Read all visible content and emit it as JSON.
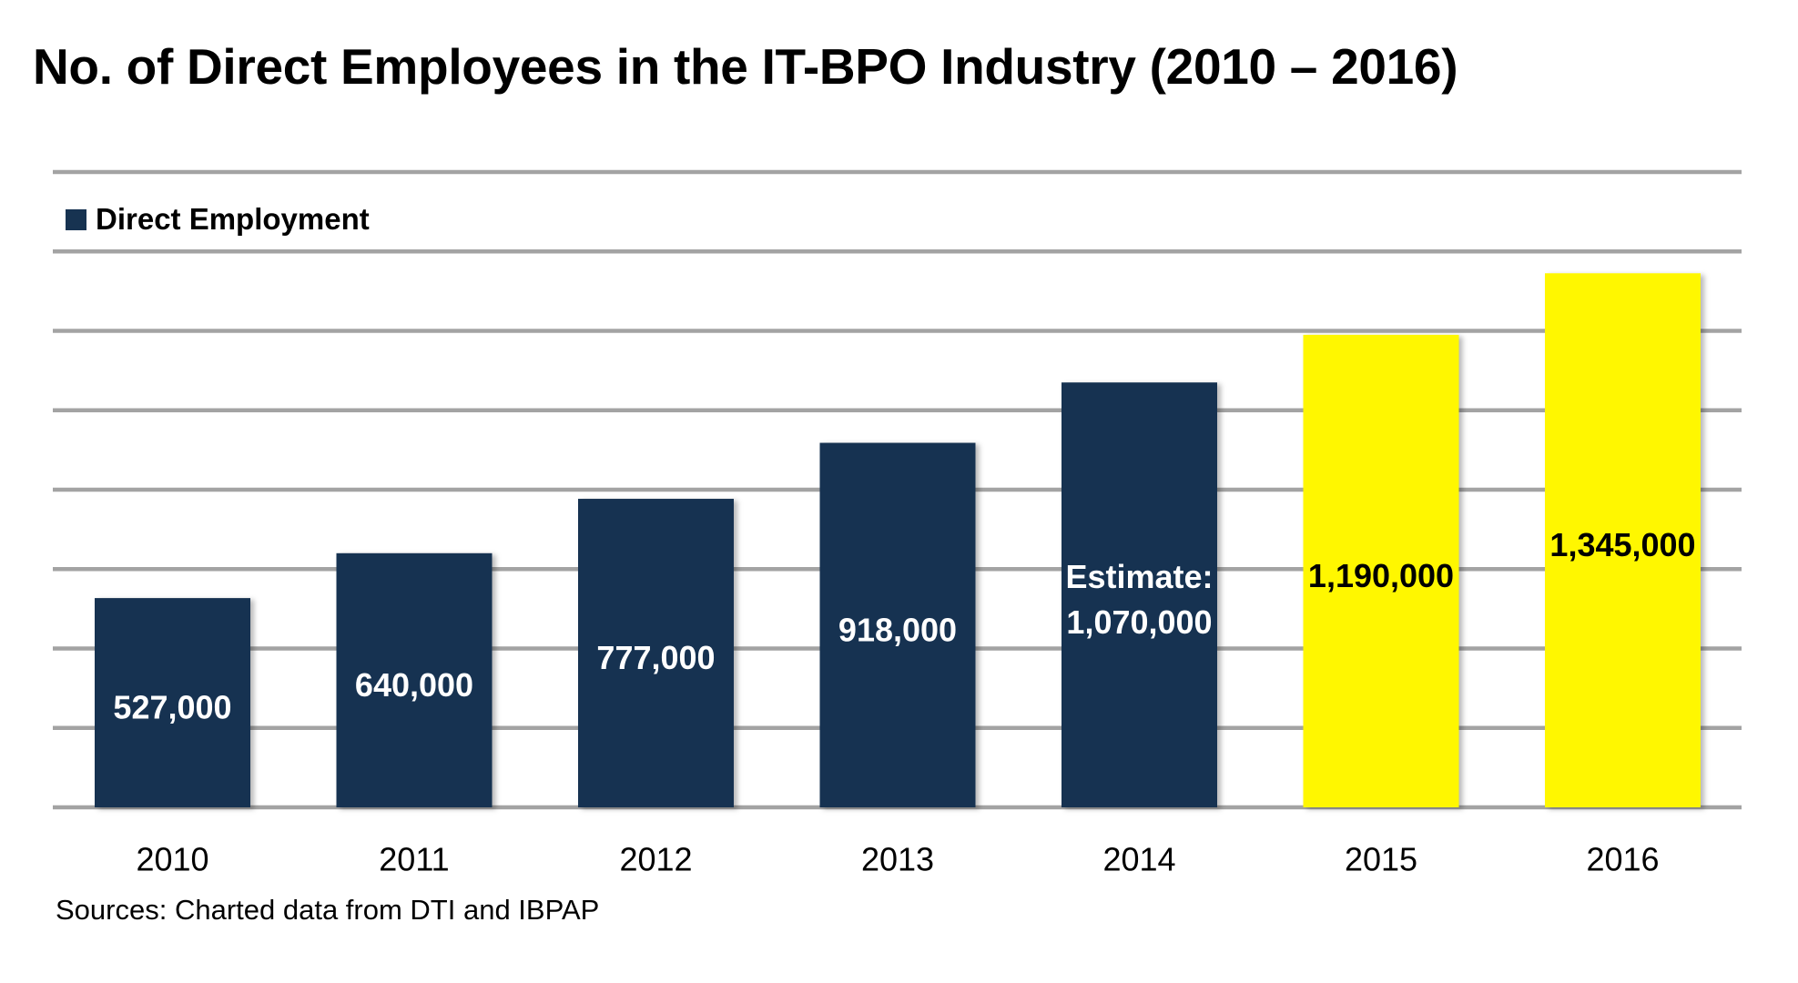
{
  "title": "No. of Direct Employees in the IT-BPO Industry (2010 – 2016)",
  "legend": {
    "label": "Direct Employment",
    "color": "#173351"
  },
  "sources": "Sources: Charted data from DTI and IBPAP",
  "colors": {
    "actual": "#173351",
    "projected": "#fff700",
    "grid": "#a3a3a3",
    "label_on_dark": "#ffffff",
    "label_on_light": "#000000"
  },
  "chart_data": {
    "type": "bar",
    "title": "No. of Direct Employees in the IT-BPO Industry (2010 – 2016)",
    "xlabel": "",
    "ylabel": "",
    "categories": [
      "2010",
      "2011",
      "2012",
      "2013",
      "2014",
      "2015",
      "2016"
    ],
    "series": [
      {
        "name": "Direct Employment",
        "values": [
          527000,
          640000,
          777000,
          918000,
          1070000,
          1190000,
          1345000
        ]
      }
    ],
    "data_labels": [
      [
        "527,000"
      ],
      [
        "640,000"
      ],
      [
        "777,000"
      ],
      [
        "918,000"
      ],
      [
        "Estimate:",
        "1,070,000"
      ],
      [
        "1,190,000"
      ],
      [
        "1,345,000"
      ]
    ],
    "highlighted": [
      false,
      false,
      false,
      false,
      false,
      true,
      true
    ],
    "ylim": [
      0,
      1600000
    ],
    "ytick_step": 200000,
    "yticks_labeled": false,
    "grid": true,
    "legend_position": "top-left",
    "source_note": "Sources: Charted data from DTI and IBPAP"
  }
}
